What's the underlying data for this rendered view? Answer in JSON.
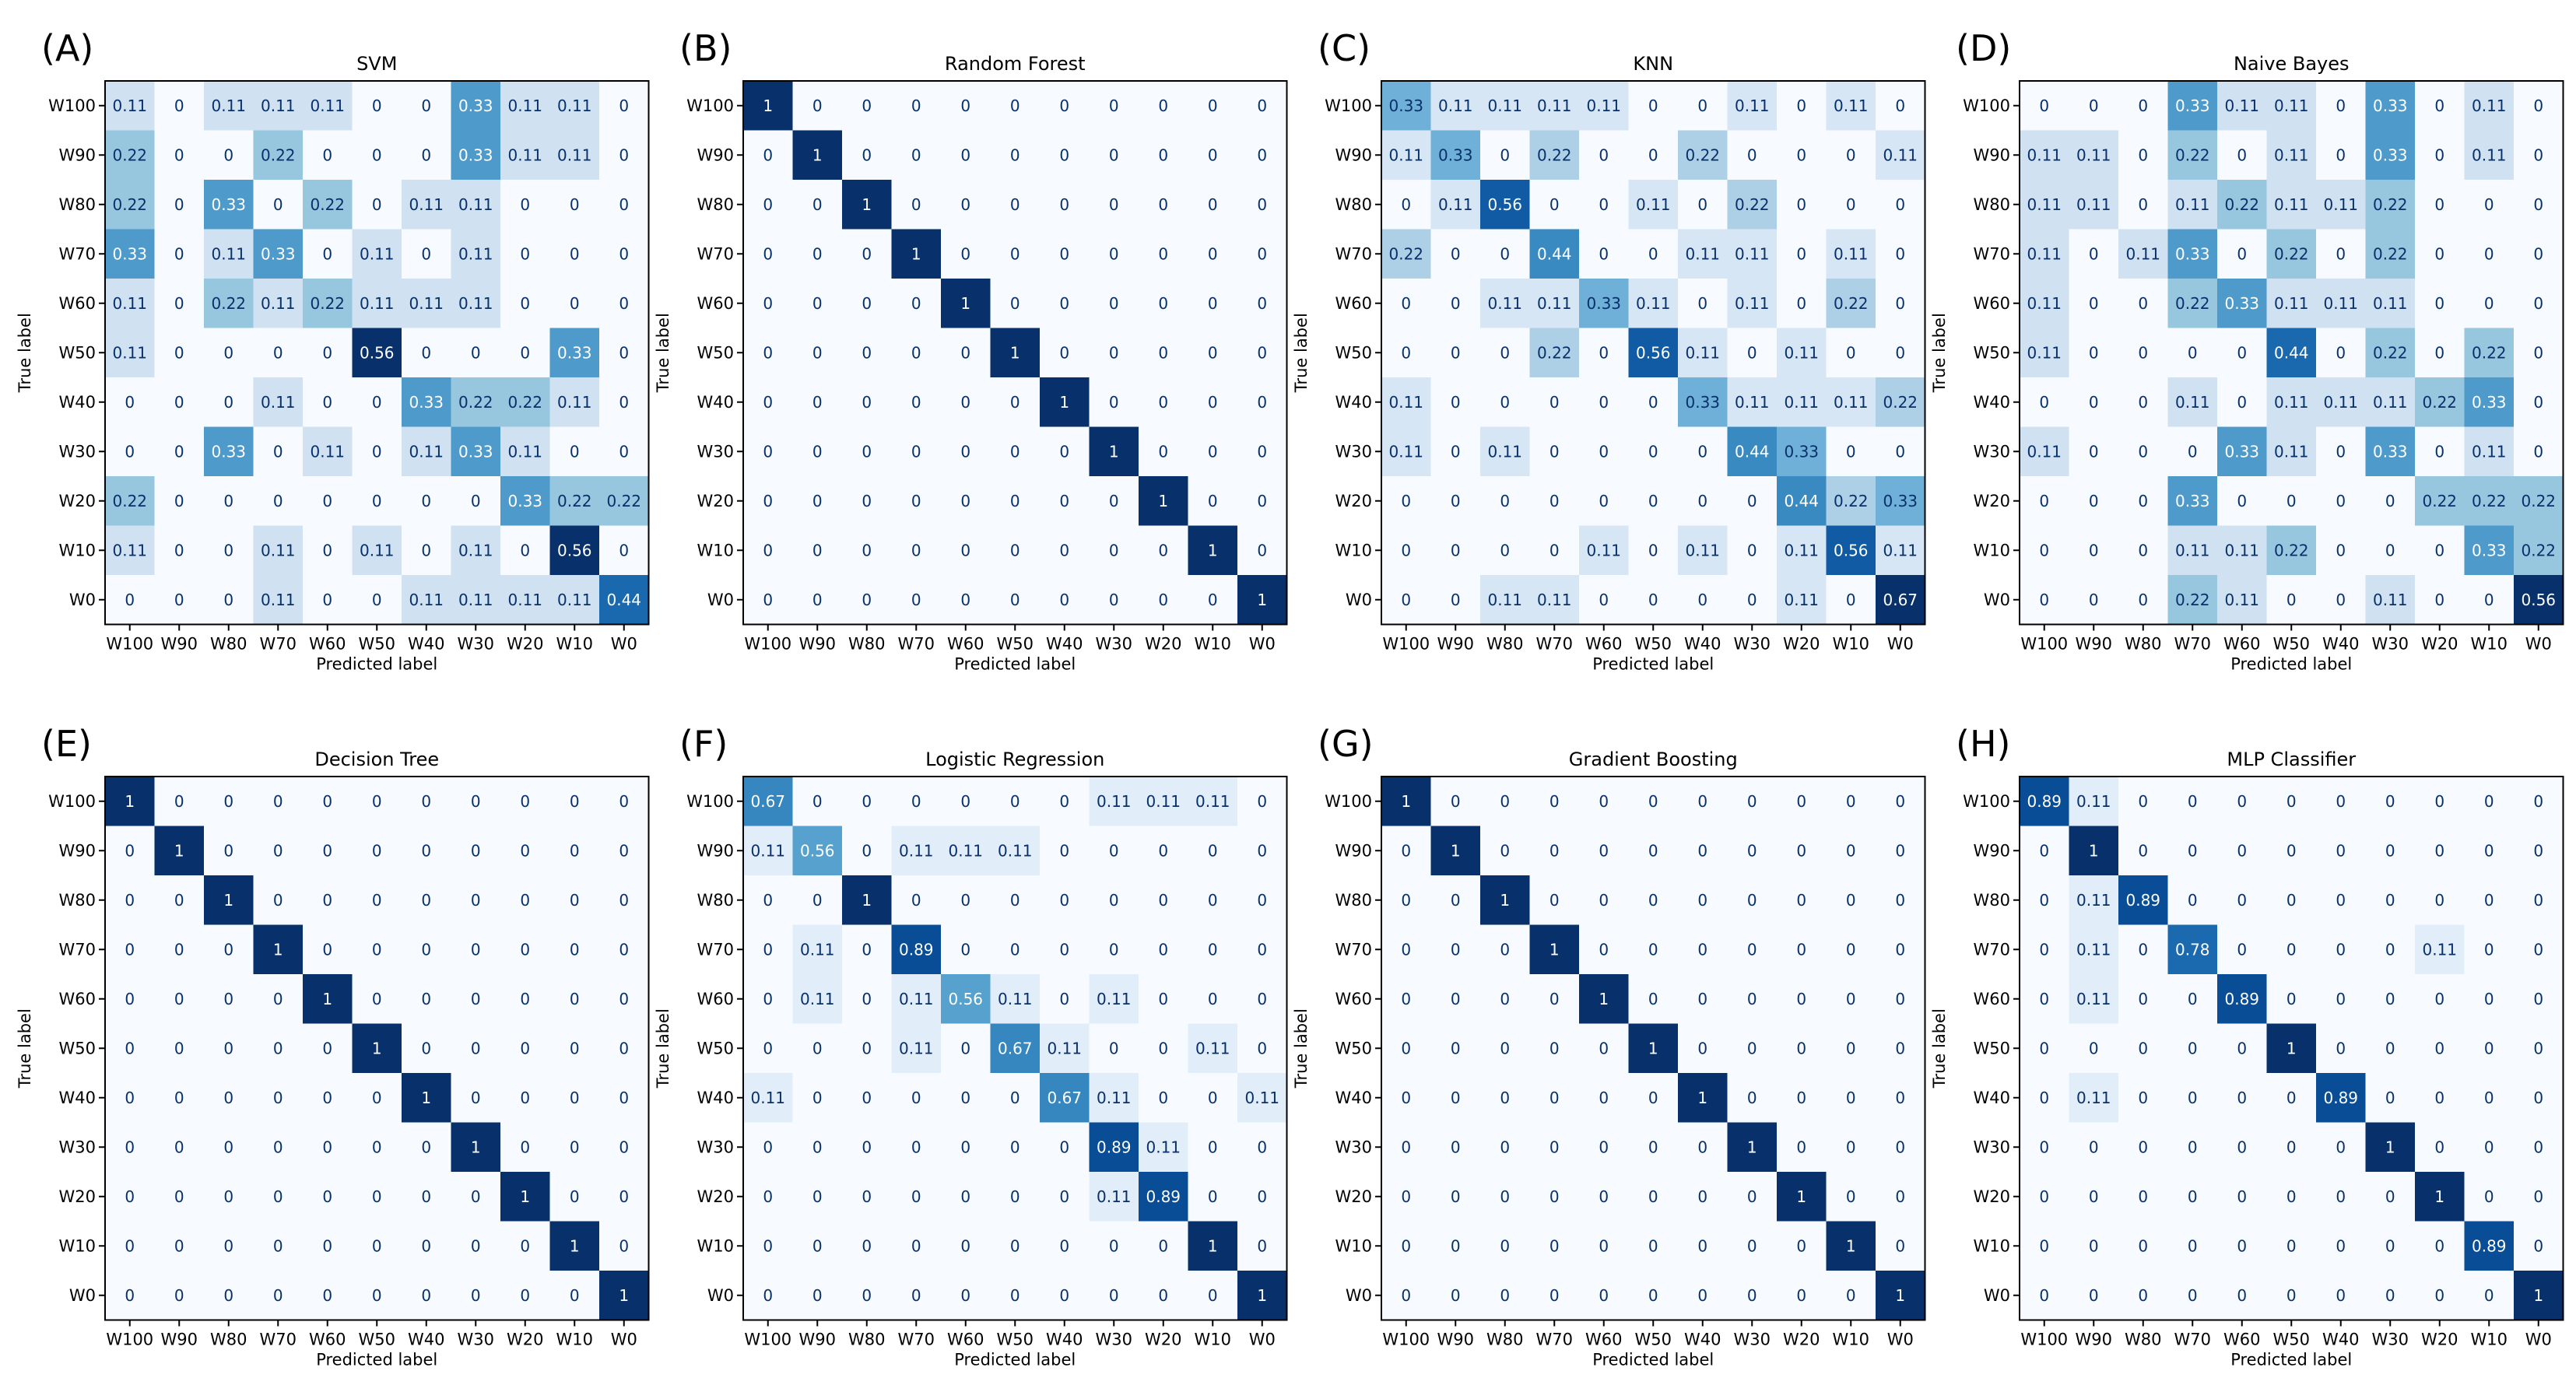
{
  "figure": {
    "labels": [
      "W100",
      "W90",
      "W80",
      "W70",
      "W60",
      "W50",
      "W40",
      "W30",
      "W20",
      "W10",
      "W0"
    ],
    "xlabel": "Predicted label",
    "ylabel": "True label"
  },
  "chart_data": [
    {
      "type": "heatmap",
      "panel": "(A)",
      "title": "SVM",
      "xlabel": "Predicted label",
      "ylabel": "True label",
      "matrix": [
        [
          0.11,
          0,
          0.11,
          0.11,
          0.11,
          0,
          0,
          0.33,
          0.11,
          0.11,
          0
        ],
        [
          0.22,
          0,
          0,
          0.22,
          0,
          0,
          0,
          0.33,
          0.11,
          0.11,
          0
        ],
        [
          0.22,
          0,
          0.33,
          0,
          0.22,
          0,
          0.11,
          0.11,
          0,
          0,
          0
        ],
        [
          0.33,
          0,
          0.11,
          0.33,
          0,
          0.11,
          0,
          0.11,
          0,
          0,
          0
        ],
        [
          0.11,
          0,
          0.22,
          0.11,
          0.22,
          0.11,
          0.11,
          0.11,
          0,
          0,
          0
        ],
        [
          0.11,
          0,
          0,
          0,
          0,
          0.56,
          0,
          0,
          0,
          0.33,
          0
        ],
        [
          0,
          0,
          0,
          0.11,
          0,
          0,
          0.33,
          0.22,
          0.22,
          0.11,
          0
        ],
        [
          0,
          0,
          0.33,
          0,
          0.11,
          0,
          0.11,
          0.33,
          0.11,
          0,
          0
        ],
        [
          0.22,
          0,
          0,
          0,
          0,
          0,
          0,
          0,
          0.33,
          0.22,
          0.22
        ],
        [
          0.11,
          0,
          0,
          0.11,
          0,
          0.11,
          0,
          0.11,
          0,
          0.56,
          0
        ],
        [
          0,
          0,
          0,
          0.11,
          0,
          0,
          0.11,
          0.11,
          0.11,
          0.11,
          0.44
        ]
      ]
    },
    {
      "type": "heatmap",
      "panel": "(B)",
      "title": "Random Forest",
      "xlabel": "Predicted label",
      "ylabel": "True label",
      "matrix": [
        [
          1,
          0,
          0,
          0,
          0,
          0,
          0,
          0,
          0,
          0,
          0
        ],
        [
          0,
          1,
          0,
          0,
          0,
          0,
          0,
          0,
          0,
          0,
          0
        ],
        [
          0,
          0,
          1,
          0,
          0,
          0,
          0,
          0,
          0,
          0,
          0
        ],
        [
          0,
          0,
          0,
          1,
          0,
          0,
          0,
          0,
          0,
          0,
          0
        ],
        [
          0,
          0,
          0,
          0,
          1,
          0,
          0,
          0,
          0,
          0,
          0
        ],
        [
          0,
          0,
          0,
          0,
          0,
          1,
          0,
          0,
          0,
          0,
          0
        ],
        [
          0,
          0,
          0,
          0,
          0,
          0,
          1,
          0,
          0,
          0,
          0
        ],
        [
          0,
          0,
          0,
          0,
          0,
          0,
          0,
          1,
          0,
          0,
          0
        ],
        [
          0,
          0,
          0,
          0,
          0,
          0,
          0,
          0,
          1,
          0,
          0
        ],
        [
          0,
          0,
          0,
          0,
          0,
          0,
          0,
          0,
          0,
          1,
          0
        ],
        [
          0,
          0,
          0,
          0,
          0,
          0,
          0,
          0,
          0,
          0,
          1
        ]
      ]
    },
    {
      "type": "heatmap",
      "panel": "(C)",
      "title": "KNN",
      "xlabel": "Predicted label",
      "ylabel": "True label",
      "matrix": [
        [
          0.33,
          0.11,
          0.11,
          0.11,
          0.11,
          0,
          0,
          0.11,
          0,
          0.11,
          0
        ],
        [
          0.11,
          0.33,
          0,
          0.22,
          0,
          0,
          0.22,
          0,
          0,
          0,
          0.11
        ],
        [
          0,
          0.11,
          0.56,
          0,
          0,
          0.11,
          0,
          0.22,
          0,
          0,
          0
        ],
        [
          0.22,
          0,
          0,
          0.44,
          0,
          0,
          0.11,
          0.11,
          0,
          0.11,
          0
        ],
        [
          0,
          0,
          0.11,
          0.11,
          0.33,
          0.11,
          0,
          0.11,
          0,
          0.22,
          0
        ],
        [
          0,
          0,
          0,
          0.22,
          0,
          0.56,
          0.11,
          0,
          0.11,
          0,
          0
        ],
        [
          0.11,
          0,
          0,
          0,
          0,
          0,
          0.33,
          0.11,
          0.11,
          0.11,
          0.22
        ],
        [
          0.11,
          0,
          0.11,
          0,
          0,
          0,
          0,
          0.44,
          0.33,
          0,
          0
        ],
        [
          0,
          0,
          0,
          0,
          0,
          0,
          0,
          0,
          0.44,
          0.22,
          0.33
        ],
        [
          0,
          0,
          0,
          0,
          0.11,
          0,
          0.11,
          0,
          0.11,
          0.56,
          0.11
        ],
        [
          0,
          0,
          0.11,
          0.11,
          0,
          0,
          0,
          0,
          0.11,
          0,
          0.67
        ]
      ]
    },
    {
      "type": "heatmap",
      "panel": "(D)",
      "title": "Naive Bayes",
      "xlabel": "Predicted label",
      "ylabel": "True label",
      "matrix": [
        [
          0,
          0,
          0,
          0.33,
          0.11,
          0.11,
          0,
          0.33,
          0,
          0.11,
          0
        ],
        [
          0.11,
          0.11,
          0,
          0.22,
          0,
          0.11,
          0,
          0.33,
          0,
          0.11,
          0
        ],
        [
          0.11,
          0.11,
          0,
          0.11,
          0.22,
          0.11,
          0.11,
          0.22,
          0,
          0,
          0
        ],
        [
          0.11,
          0,
          0.11,
          0.33,
          0,
          0.22,
          0,
          0.22,
          0,
          0,
          0
        ],
        [
          0.11,
          0,
          0,
          0.22,
          0.33,
          0.11,
          0.11,
          0.11,
          0,
          0,
          0
        ],
        [
          0.11,
          0,
          0,
          0,
          0,
          0.44,
          0,
          0.22,
          0,
          0.22,
          0
        ],
        [
          0,
          0,
          0,
          0.11,
          0,
          0.11,
          0.11,
          0.11,
          0.22,
          0.33,
          0
        ],
        [
          0.11,
          0,
          0,
          0,
          0.33,
          0.11,
          0,
          0.33,
          0,
          0.11,
          0
        ],
        [
          0,
          0,
          0,
          0.33,
          0,
          0,
          0,
          0,
          0.22,
          0.22,
          0.22
        ],
        [
          0,
          0,
          0,
          0.11,
          0.11,
          0.22,
          0,
          0,
          0,
          0.33,
          0.22
        ],
        [
          0,
          0,
          0,
          0.22,
          0.11,
          0,
          0,
          0.11,
          0,
          0,
          0.56
        ]
      ]
    },
    {
      "type": "heatmap",
      "panel": "(E)",
      "title": "Decision Tree",
      "xlabel": "Predicted label",
      "ylabel": "True label",
      "matrix": [
        [
          1,
          0,
          0,
          0,
          0,
          0,
          0,
          0,
          0,
          0,
          0
        ],
        [
          0,
          1,
          0,
          0,
          0,
          0,
          0,
          0,
          0,
          0,
          0
        ],
        [
          0,
          0,
          1,
          0,
          0,
          0,
          0,
          0,
          0,
          0,
          0
        ],
        [
          0,
          0,
          0,
          1,
          0,
          0,
          0,
          0,
          0,
          0,
          0
        ],
        [
          0,
          0,
          0,
          0,
          1,
          0,
          0,
          0,
          0,
          0,
          0
        ],
        [
          0,
          0,
          0,
          0,
          0,
          1,
          0,
          0,
          0,
          0,
          0
        ],
        [
          0,
          0,
          0,
          0,
          0,
          0,
          1,
          0,
          0,
          0,
          0
        ],
        [
          0,
          0,
          0,
          0,
          0,
          0,
          0,
          1,
          0,
          0,
          0
        ],
        [
          0,
          0,
          0,
          0,
          0,
          0,
          0,
          0,
          1,
          0,
          0
        ],
        [
          0,
          0,
          0,
          0,
          0,
          0,
          0,
          0,
          0,
          1,
          0
        ],
        [
          0,
          0,
          0,
          0,
          0,
          0,
          0,
          0,
          0,
          0,
          1
        ]
      ]
    },
    {
      "type": "heatmap",
      "panel": "(F)",
      "title": "Logistic Regression",
      "xlabel": "Predicted label",
      "ylabel": "True label",
      "matrix": [
        [
          0.67,
          0,
          0,
          0,
          0,
          0,
          0,
          0.11,
          0.11,
          0.11,
          0
        ],
        [
          0.11,
          0.56,
          0,
          0.11,
          0.11,
          0.11,
          0,
          0,
          0,
          0,
          0
        ],
        [
          0,
          0,
          1,
          0,
          0,
          0,
          0,
          0,
          0,
          0,
          0
        ],
        [
          0,
          0.11,
          0,
          0.89,
          0,
          0,
          0,
          0,
          0,
          0,
          0
        ],
        [
          0,
          0.11,
          0,
          0.11,
          0.56,
          0.11,
          0,
          0.11,
          0,
          0,
          0
        ],
        [
          0,
          0,
          0,
          0.11,
          0,
          0.67,
          0.11,
          0,
          0,
          0.11,
          0
        ],
        [
          0.11,
          0,
          0,
          0,
          0,
          0,
          0.67,
          0.11,
          0,
          0,
          0.11
        ],
        [
          0,
          0,
          0,
          0,
          0,
          0,
          0,
          0.89,
          0.11,
          0,
          0
        ],
        [
          0,
          0,
          0,
          0,
          0,
          0,
          0,
          0.11,
          0.89,
          0,
          0
        ],
        [
          0,
          0,
          0,
          0,
          0,
          0,
          0,
          0,
          0,
          1,
          0
        ],
        [
          0,
          0,
          0,
          0,
          0,
          0,
          0,
          0,
          0,
          0,
          1
        ]
      ]
    },
    {
      "type": "heatmap",
      "panel": "(G)",
      "title": "Gradient Boosting",
      "xlabel": "Predicted label",
      "ylabel": "True label",
      "matrix": [
        [
          1,
          0,
          0,
          0,
          0,
          0,
          0,
          0,
          0,
          0,
          0
        ],
        [
          0,
          1,
          0,
          0,
          0,
          0,
          0,
          0,
          0,
          0,
          0
        ],
        [
          0,
          0,
          1,
          0,
          0,
          0,
          0,
          0,
          0,
          0,
          0
        ],
        [
          0,
          0,
          0,
          1,
          0,
          0,
          0,
          0,
          0,
          0,
          0
        ],
        [
          0,
          0,
          0,
          0,
          1,
          0,
          0,
          0,
          0,
          0,
          0
        ],
        [
          0,
          0,
          0,
          0,
          0,
          1,
          0,
          0,
          0,
          0,
          0
        ],
        [
          0,
          0,
          0,
          0,
          0,
          0,
          1,
          0,
          0,
          0,
          0
        ],
        [
          0,
          0,
          0,
          0,
          0,
          0,
          0,
          1,
          0,
          0,
          0
        ],
        [
          0,
          0,
          0,
          0,
          0,
          0,
          0,
          0,
          1,
          0,
          0
        ],
        [
          0,
          0,
          0,
          0,
          0,
          0,
          0,
          0,
          0,
          1,
          0
        ],
        [
          0,
          0,
          0,
          0,
          0,
          0,
          0,
          0,
          0,
          0,
          1
        ]
      ]
    },
    {
      "type": "heatmap",
      "panel": "(H)",
      "title": "MLP Classifier",
      "xlabel": "Predicted label",
      "ylabel": "True label",
      "matrix": [
        [
          0.89,
          0.11,
          0,
          0,
          0,
          0,
          0,
          0,
          0,
          0,
          0
        ],
        [
          0,
          1,
          0,
          0,
          0,
          0,
          0,
          0,
          0,
          0,
          0
        ],
        [
          0,
          0.11,
          0.89,
          0,
          0,
          0,
          0,
          0,
          0,
          0,
          0
        ],
        [
          0,
          0.11,
          0,
          0.78,
          0,
          0,
          0,
          0,
          0.11,
          0,
          0
        ],
        [
          0,
          0.11,
          0,
          0,
          0.89,
          0,
          0,
          0,
          0,
          0,
          0
        ],
        [
          0,
          0,
          0,
          0,
          0,
          1,
          0,
          0,
          0,
          0,
          0
        ],
        [
          0,
          0.11,
          0,
          0,
          0,
          0,
          0.89,
          0,
          0,
          0,
          0
        ],
        [
          0,
          0,
          0,
          0,
          0,
          0,
          0,
          1,
          0,
          0,
          0
        ],
        [
          0,
          0,
          0,
          0,
          0,
          0,
          0,
          0,
          1,
          0,
          0
        ],
        [
          0,
          0,
          0,
          0,
          0,
          0,
          0,
          0,
          0,
          0.89,
          0
        ],
        [
          0,
          0,
          0,
          0,
          0,
          0,
          0,
          0,
          0,
          0,
          1
        ]
      ]
    }
  ]
}
